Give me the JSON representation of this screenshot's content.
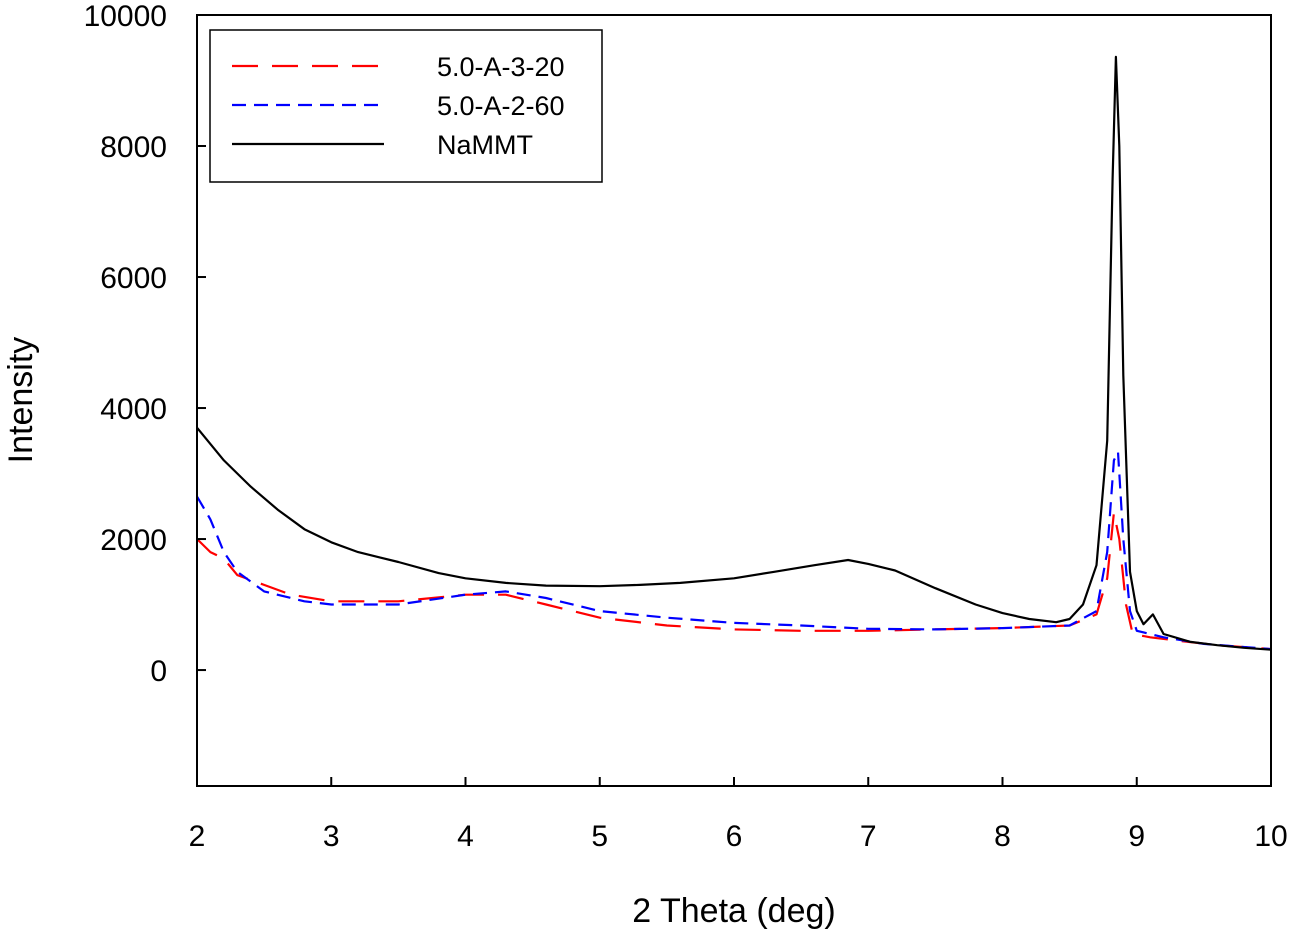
{
  "chart_data": {
    "type": "line",
    "title": "",
    "xlabel": "2 Theta (deg)",
    "ylabel": "Intensity",
    "xlim": [
      2,
      10
    ],
    "ylim": [
      -1770,
      10000
    ],
    "xticks": [
      2,
      3,
      4,
      5,
      6,
      7,
      8,
      9,
      10
    ],
    "yticks": [
      0,
      2000,
      4000,
      6000,
      8000,
      10000
    ],
    "grid": false,
    "legend_position": "top-left",
    "series": [
      {
        "name": "5.0-A-3-20",
        "color": "#ff0000",
        "style": "long-dash",
        "x": [
          2.0,
          2.1,
          2.2,
          2.3,
          2.5,
          2.7,
          3.0,
          3.5,
          4.0,
          4.3,
          4.6,
          5.0,
          5.5,
          6.0,
          6.5,
          7.0,
          7.5,
          8.0,
          8.5,
          8.7,
          8.78,
          8.83,
          8.87,
          8.92,
          8.97,
          9.1,
          9.3,
          9.6,
          10.0
        ],
        "y": [
          2000,
          1800,
          1700,
          1450,
          1300,
          1150,
          1050,
          1050,
          1150,
          1150,
          1000,
          800,
          680,
          620,
          600,
          600,
          620,
          640,
          680,
          850,
          1400,
          2400,
          2000,
          1000,
          550,
          500,
          450,
          380,
          320
        ]
      },
      {
        "name": "5.0-A-2-60",
        "color": "#0000ff",
        "style": "short-dash",
        "x": [
          2.0,
          2.1,
          2.2,
          2.3,
          2.5,
          2.8,
          3.0,
          3.5,
          4.0,
          4.3,
          4.6,
          5.0,
          5.5,
          6.0,
          6.5,
          7.0,
          7.5,
          8.0,
          8.5,
          8.7,
          8.78,
          8.83,
          8.86,
          8.9,
          8.95,
          9.0,
          9.2,
          9.5,
          10.0
        ],
        "y": [
          2650,
          2300,
          1800,
          1500,
          1200,
          1050,
          1000,
          1000,
          1150,
          1200,
          1100,
          900,
          800,
          720,
          680,
          630,
          620,
          640,
          680,
          900,
          1800,
          3200,
          3330,
          2000,
          900,
          600,
          500,
          400,
          320
        ]
      },
      {
        "name": "NaMMT",
        "color": "#000000",
        "style": "solid",
        "x": [
          2.0,
          2.2,
          2.4,
          2.6,
          2.8,
          3.0,
          3.2,
          3.5,
          3.8,
          4.0,
          4.3,
          4.6,
          5.0,
          5.3,
          5.6,
          6.0,
          6.3,
          6.6,
          6.85,
          7.0,
          7.2,
          7.5,
          7.8,
          8.0,
          8.2,
          8.4,
          8.5,
          8.6,
          8.7,
          8.78,
          8.82,
          8.845,
          8.87,
          8.9,
          8.95,
          9.0,
          9.05,
          9.12,
          9.2,
          9.4,
          9.6,
          9.8,
          10.0
        ],
        "y": [
          3700,
          3200,
          2800,
          2450,
          2150,
          1950,
          1800,
          1650,
          1480,
          1400,
          1330,
          1290,
          1280,
          1300,
          1330,
          1400,
          1500,
          1600,
          1680,
          1620,
          1520,
          1250,
          1000,
          870,
          780,
          730,
          780,
          1000,
          1600,
          3500,
          7500,
          9360,
          8000,
          4500,
          1500,
          900,
          700,
          850,
          550,
          430,
          380,
          340,
          310
        ]
      }
    ]
  }
}
